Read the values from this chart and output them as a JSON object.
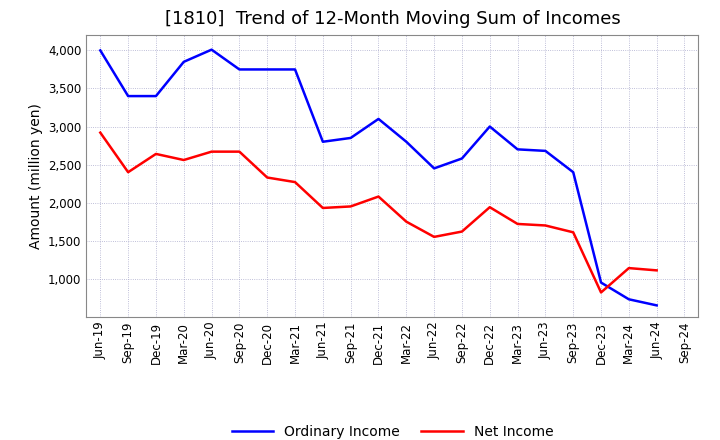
{
  "title": "[1810]  Trend of 12-Month Moving Sum of Incomes",
  "ylabel": "Amount (million yen)",
  "x_labels": [
    "Jun-19",
    "Sep-19",
    "Dec-19",
    "Mar-20",
    "Jun-20",
    "Sep-20",
    "Dec-20",
    "Mar-21",
    "Jun-21",
    "Sep-21",
    "Dec-21",
    "Mar-22",
    "Jun-22",
    "Sep-22",
    "Dec-22",
    "Mar-23",
    "Jun-23",
    "Sep-23",
    "Dec-23",
    "Mar-24",
    "Jun-24",
    "Sep-24"
  ],
  "ordinary_income": [
    4000,
    3400,
    3400,
    3850,
    4010,
    3750,
    3750,
    3750,
    2800,
    2850,
    3100,
    2800,
    2450,
    2580,
    3000,
    2700,
    2680,
    2400,
    950,
    730,
    650,
    null
  ],
  "net_income": [
    2920,
    2400,
    2640,
    2560,
    2670,
    2670,
    2330,
    2270,
    1930,
    1950,
    2080,
    1750,
    1550,
    1620,
    1940,
    1720,
    1700,
    1610,
    820,
    1140,
    1110,
    null
  ],
  "ordinary_color": "#0000FF",
  "net_color": "#FF0000",
  "background_color": "#FFFFFF",
  "grid_color": "#AAAACC",
  "ylim": [
    500,
    4200
  ],
  "yticks": [
    1000,
    1500,
    2000,
    2500,
    3000,
    3500,
    4000
  ],
  "line_width": 1.8,
  "title_fontsize": 13,
  "label_fontsize": 10,
  "tick_fontsize": 8.5
}
